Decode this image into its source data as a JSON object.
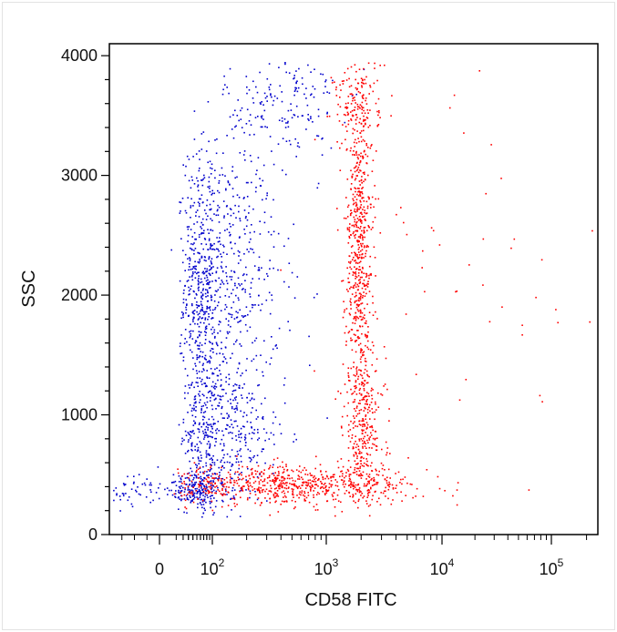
{
  "chart_data": {
    "type": "scatter",
    "title": "",
    "xlabel": "CD58 FITC",
    "ylabel": "SSC",
    "x_scale": "biexponential",
    "y_scale": "linear",
    "xlim": [
      -40,
      250000
    ],
    "ylim": [
      0,
      4100
    ],
    "x_ticks": [
      {
        "value": 0,
        "base": "0",
        "exp": ""
      },
      {
        "value": 100,
        "base": "10",
        "exp": "2"
      },
      {
        "value": 1000,
        "base": "10",
        "exp": "3"
      },
      {
        "value": 10000,
        "base": "10",
        "exp": "4"
      },
      {
        "value": 100000,
        "base": "10",
        "exp": "5"
      }
    ],
    "y_ticks": [
      {
        "value": 0,
        "label": "0"
      },
      {
        "value": 1000,
        "label": "1000"
      },
      {
        "value": 2000,
        "label": "2000"
      },
      {
        "value": 3000,
        "label": "3000"
      },
      {
        "value": 4000,
        "label": "4000"
      }
    ],
    "grid": false,
    "legend": "none",
    "series": [
      {
        "color": "#0000cc",
        "clusters": [
          {
            "x_center": 90,
            "y_center": 2100,
            "y_spread": 600,
            "x_spread_decades": 0.32,
            "fraction": 0.5
          },
          {
            "x_center": 110,
            "y_center": 850,
            "y_spread": 300,
            "x_spread_decades": 0.3,
            "fraction": 0.25
          },
          {
            "x_center": 40,
            "y_center": 380,
            "y_spread": 80,
            "x_spread_decades": 0.35,
            "fraction": 0.15
          },
          {
            "x_center": 400,
            "y_center": 3600,
            "y_spread": 250,
            "x_spread_decades": 0.25,
            "fraction": 0.1
          }
        ]
      },
      {
        "color": "#ff0000",
        "clusters": [
          {
            "x_center": 1900,
            "y_center": 2400,
            "y_spread": 700,
            "x_spread_decades": 0.06,
            "fraction": 0.35
          },
          {
            "x_center": 2100,
            "y_center": 900,
            "y_spread": 300,
            "x_spread_decades": 0.09,
            "fraction": 0.15
          },
          {
            "x_center": 500,
            "y_center": 420,
            "y_spread": 80,
            "x_spread_decades": 0.55,
            "fraction": 0.4
          },
          {
            "x_center": 20000,
            "y_center": 2000,
            "y_spread": 900,
            "x_spread_decades": 0.7,
            "fraction": 0.03
          },
          {
            "x_center": 1800,
            "y_center": 3600,
            "y_spread": 200,
            "x_spread_decades": 0.1,
            "fraction": 0.07
          }
        ]
      }
    ]
  }
}
